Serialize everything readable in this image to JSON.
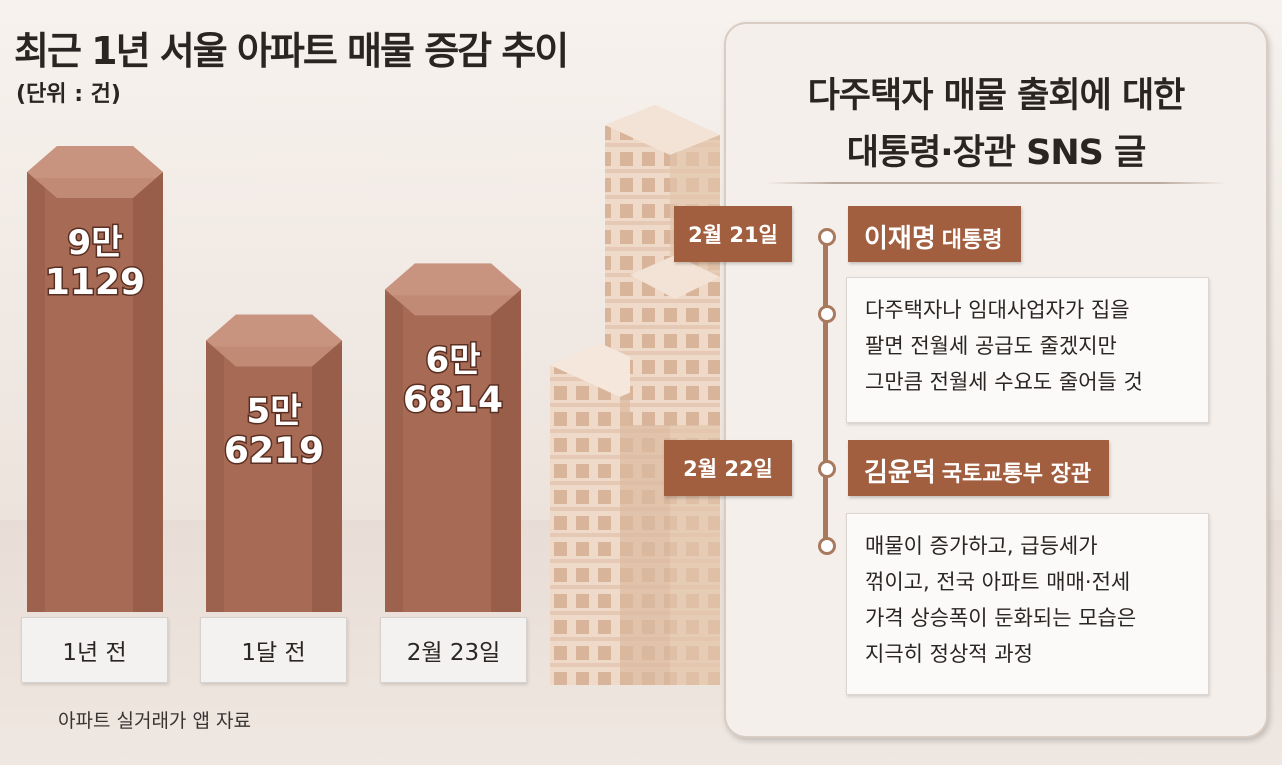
{
  "chart_data": {
    "type": "bar",
    "title": "최근 1년 서울 아파트 매물 증감 추이",
    "unit": "(단위 : 건)",
    "categories": [
      "1년 전",
      "1달 전",
      "2월 23일"
    ],
    "values": [
      91129,
      56219,
      66814
    ],
    "value_labels": [
      {
        "top": "9만",
        "bottom": "1129"
      },
      {
        "top": "5만",
        "bottom": "6219"
      },
      {
        "top": "6만",
        "bottom": "6814"
      }
    ],
    "source": "아파트 실거래가 앱 자료"
  },
  "panel": {
    "title_lines": [
      "다주택자 매물 출회에 대한",
      "대통령·장관 SNS 글"
    ],
    "entries": [
      {
        "date": "2월 21일",
        "name": "이재명",
        "role": "대통령",
        "quote_lines": [
          "다주택자나 임대사업자가 집을",
          "팔면 전월세 공급도 줄겠지만",
          "그만큼  전월세 수요도 줄어들 것"
        ]
      },
      {
        "date": "2월 22일",
        "name": "김윤덕",
        "role": "국토교통부 장관",
        "quote_lines": [
          "매물이 증가하고, 급등세가",
          "꺾이고, 전국 아파트 매매·전세",
          "가격 상승폭이 둔화되는 모습은",
          "지극히 정상적 과정"
        ]
      }
    ]
  },
  "colors": {
    "bar_front": "#a66a55",
    "bar_top": "#c89480",
    "bar_side": "#8d5442",
    "accent": "#a25f40",
    "timeline": "#a8795d"
  }
}
